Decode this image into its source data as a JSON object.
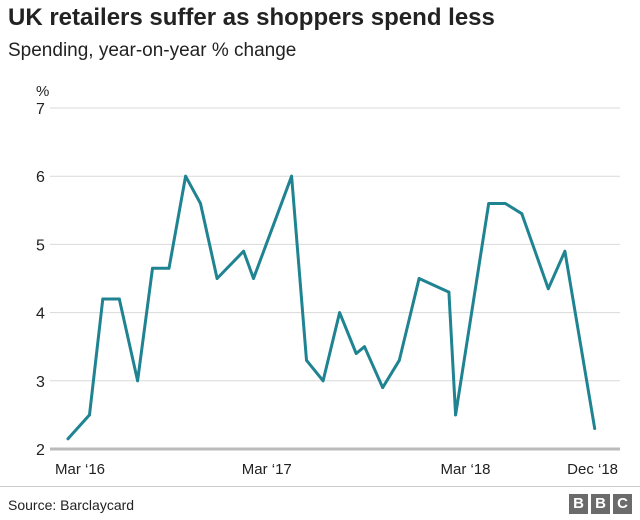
{
  "header": {
    "title": "UK retailers suffer as shoppers spend less",
    "subtitle": "Spending, year-on-year % change"
  },
  "footer": {
    "source": "Source: Barclaycard",
    "logo_letters": [
      "B",
      "B",
      "C"
    ]
  },
  "colors": {
    "line": "#1f8391",
    "grid": "#d9d9d9",
    "baseline": "#bbbbbb",
    "text": "#222222",
    "logo": "#6b6b6b"
  },
  "chart_data": {
    "type": "line",
    "unit_label": "%",
    "yticks": [
      2,
      3,
      4,
      5,
      6,
      7
    ],
    "ylim": [
      2,
      7
    ],
    "xlim": [
      0,
      32
    ],
    "xticks": [
      {
        "x": 0,
        "label": "Mar ‘16"
      },
      {
        "x": 12,
        "label": "Mar ‘17"
      },
      {
        "x": 24,
        "label": "Mar ‘18"
      },
      {
        "x": 33,
        "label": "Dec ‘18"
      }
    ],
    "series": [
      {
        "name": "Spending, year-on-year % change",
        "points": [
          [
            0,
            2.15
          ],
          [
            1.3,
            2.5
          ],
          [
            2.1,
            4.2
          ],
          [
            3.1,
            4.2
          ],
          [
            4.2,
            3.0
          ],
          [
            5.1,
            4.65
          ],
          [
            6.1,
            4.65
          ],
          [
            7.1,
            6.0
          ],
          [
            8.0,
            5.6
          ],
          [
            9.0,
            4.5
          ],
          [
            10.6,
            4.9
          ],
          [
            11.2,
            4.5
          ],
          [
            13.5,
            6.0
          ],
          [
            14.4,
            3.3
          ],
          [
            15.4,
            3.0
          ],
          [
            16.4,
            4.0
          ],
          [
            17.4,
            3.4
          ],
          [
            17.9,
            3.5
          ],
          [
            19.0,
            2.9
          ],
          [
            20.0,
            3.3
          ],
          [
            21.2,
            4.5
          ],
          [
            23.0,
            4.3
          ],
          [
            23.4,
            2.5
          ],
          [
            25.4,
            5.6
          ],
          [
            26.4,
            5.6
          ],
          [
            27.4,
            5.45
          ],
          [
            29.0,
            4.35
          ],
          [
            30.0,
            4.9
          ],
          [
            31.8,
            2.3
          ]
        ]
      }
    ]
  }
}
